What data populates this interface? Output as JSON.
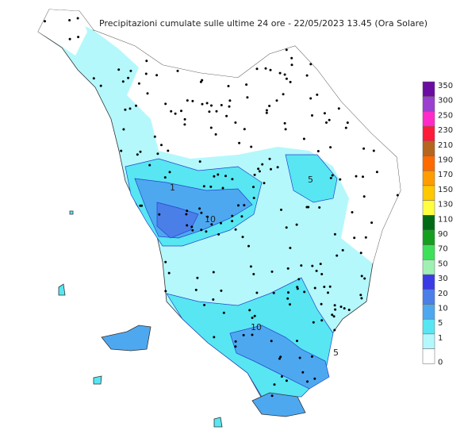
{
  "title": "Precipitazioni cumulate sulle ultime 24 ore - 22/05/2023 13.45 (Ora Solare)",
  "legend": {
    "items": [
      {
        "label": "350",
        "color": "#6a0da0"
      },
      {
        "label": "300",
        "color": "#9b3fd0"
      },
      {
        "label": "250",
        "color": "#ff2bc8"
      },
      {
        "label": "230",
        "color": "#ff1a3a"
      },
      {
        "label": "210",
        "color": "#b5651d"
      },
      {
        "label": "190",
        "color": "#ff6a00"
      },
      {
        "label": "170",
        "color": "#ff9d00"
      },
      {
        "label": "150",
        "color": "#ffc800"
      },
      {
        "label": "130",
        "color": "#ffff40"
      },
      {
        "label": "110",
        "color": "#006b14"
      },
      {
        "label": "90",
        "color": "#14a01e"
      },
      {
        "label": "70",
        "color": "#3ee05a"
      },
      {
        "label": "50",
        "color": "#a0f0b4"
      },
      {
        "label": "30",
        "color": "#3a3ae6"
      },
      {
        "label": "20",
        "color": "#4a7fe8"
      },
      {
        "label": "10",
        "color": "#4ea8f0"
      },
      {
        "label": "5",
        "color": "#58e6f2"
      },
      {
        "label": "1",
        "color": "#b4f8fc"
      },
      {
        "label": "0",
        "color": "#ffffff"
      }
    ]
  },
  "contour_labels": [
    "1",
    "10",
    "5",
    "10",
    "5"
  ]
}
